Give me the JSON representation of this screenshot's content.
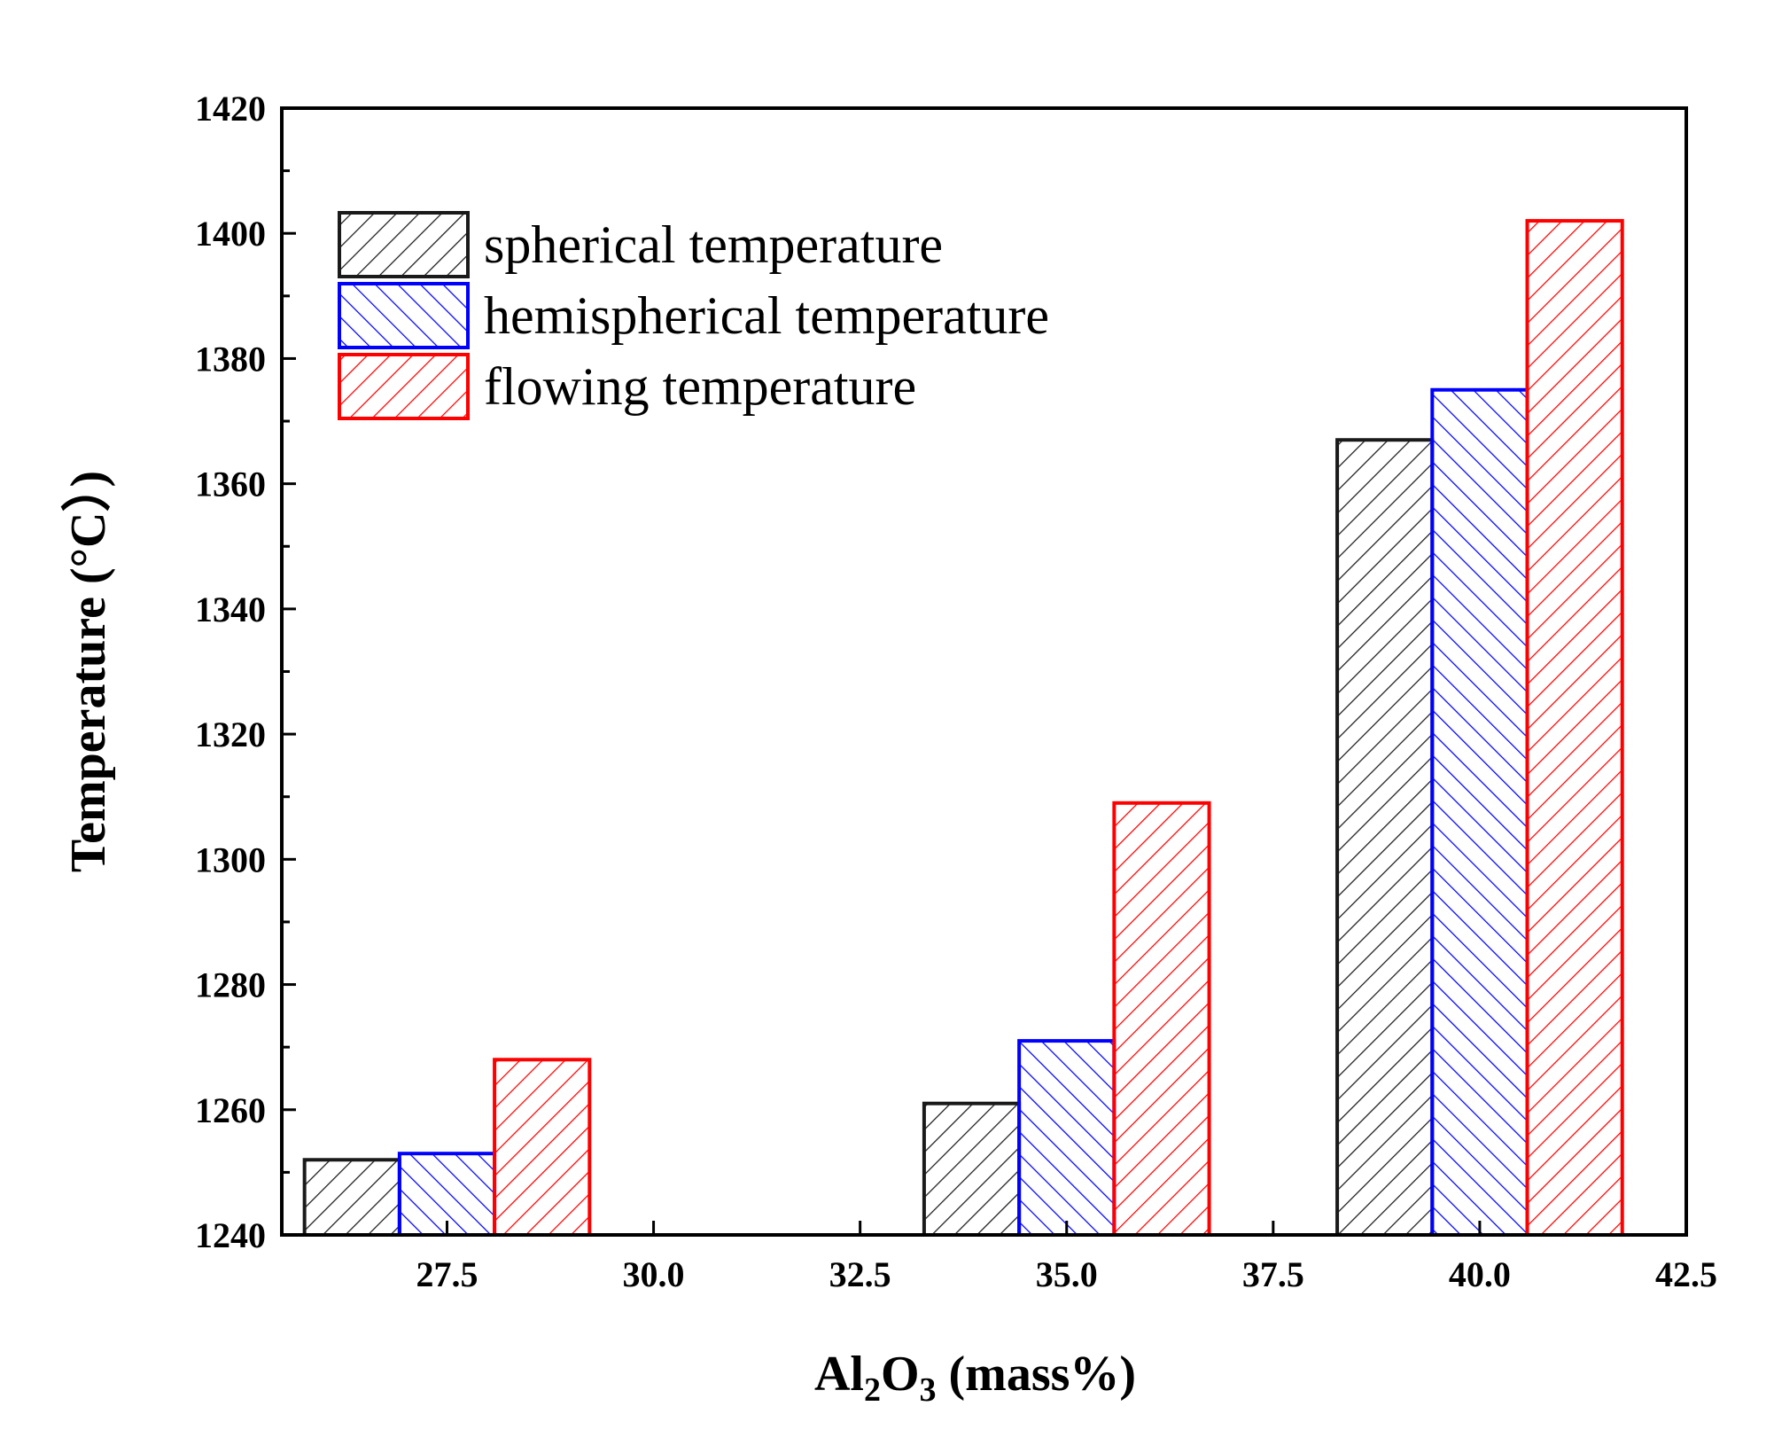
{
  "chart_data": {
    "type": "bar",
    "xlabel": {
      "main": "Al",
      "sub1": "2",
      "mid": "O",
      "sub2": "3",
      "rest": " (mass%)"
    },
    "ylabel": "Temperature (°C）)",
    "xlim": [
      25.5,
      42.5
    ],
    "ylim": [
      1240,
      1420
    ],
    "xticks": [
      "27.5",
      "30.0",
      "32.5",
      "35.0",
      "37.5",
      "40.0",
      "42.5"
    ],
    "xtick_values": [
      27.5,
      30.0,
      32.5,
      35.0,
      37.5,
      40.0,
      42.5
    ],
    "yticks": [
      "1240",
      "1260",
      "1280",
      "1300",
      "1320",
      "1340",
      "1360",
      "1380",
      "1400",
      "1420"
    ],
    "ytick_values": [
      1240,
      1260,
      1280,
      1300,
      1320,
      1340,
      1360,
      1380,
      1400,
      1420
    ],
    "bar_width": 1.15,
    "groups_x": [
      27.5,
      35.0,
      40.0
    ],
    "series": [
      {
        "name": "spherical temperature",
        "color": "#1a1a1a",
        "hatch": "forward",
        "offset": -1.15,
        "values": [
          1252,
          1261,
          1367
        ]
      },
      {
        "name": "hemispherical temperature",
        "color": "#0000ff",
        "hatch": "backward",
        "offset": 0,
        "values": [
          1253,
          1271,
          1375
        ]
      },
      {
        "name": "flowing temperature",
        "color": "#ff0000",
        "hatch": "forward",
        "offset": 1.15,
        "values": [
          1268,
          1309,
          1402
        ]
      }
    ],
    "legend_position": "top-left",
    "grid": false
  }
}
